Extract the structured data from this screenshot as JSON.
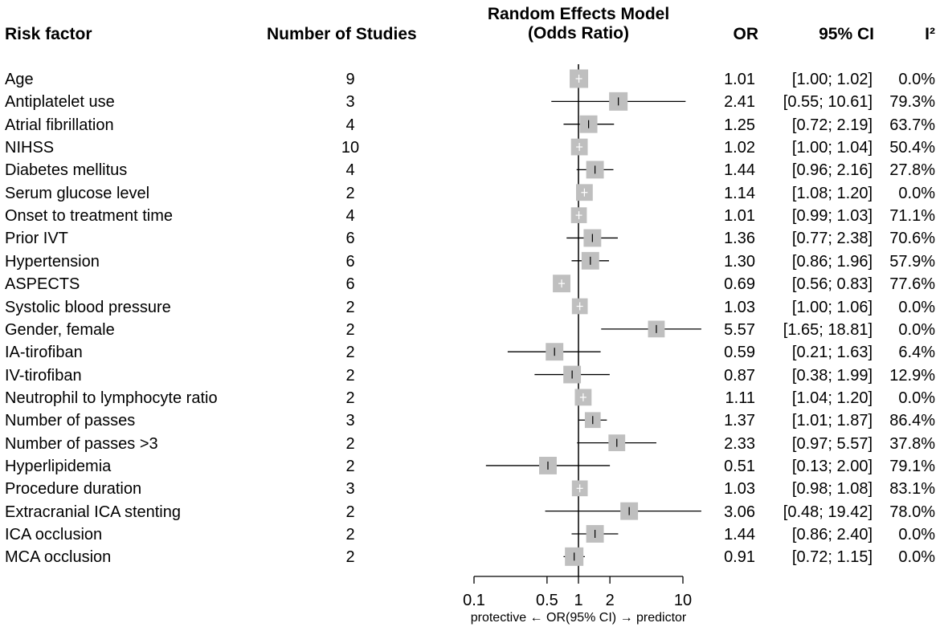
{
  "headers": {
    "risk_factor": "Risk factor",
    "num_studies": "Number of Studies",
    "model_line1": "Random Effects Model",
    "model_line2": "(Odds Ratio)",
    "or": "OR",
    "ci": "95% CI",
    "i2": "I²"
  },
  "axis_caption": "protective ← OR(95% CI) → predictor",
  "colors": {
    "box": "#bfbfbf",
    "line": "#000000"
  },
  "chart_data": {
    "type": "forest",
    "scale": "log",
    "reference_line": 1,
    "xlim": [
      0.1,
      10
    ],
    "ticks": [
      0.1,
      0.5,
      1,
      2,
      10
    ],
    "tick_labels": [
      "0.1",
      "0.5",
      "1",
      "2",
      "10"
    ],
    "rows": [
      {
        "factor": "Age",
        "studies": "9",
        "or": 1.01,
        "lo": 1.0,
        "hi": 1.02,
        "or_text": "1.01",
        "ci_text": "[1.00; 1.02]",
        "i2_text": "0.0%",
        "weight": 1.0
      },
      {
        "factor": "Antiplatelet use",
        "studies": "3",
        "or": 2.41,
        "lo": 0.55,
        "hi": 10.61,
        "or_text": "2.41",
        "ci_text": "[0.55; 10.61]",
        "i2_text": "79.3%",
        "weight": 1.0
      },
      {
        "factor": "Atrial fibrillation",
        "studies": "4",
        "or": 1.25,
        "lo": 0.72,
        "hi": 2.19,
        "or_text": "1.25",
        "ci_text": "[0.72; 2.19]",
        "i2_text": "63.7%",
        "weight": 0.95
      },
      {
        "factor": "NIHSS",
        "studies": "10",
        "or": 1.02,
        "lo": 1.0,
        "hi": 1.04,
        "or_text": "1.02",
        "ci_text": "[1.00; 1.04]",
        "i2_text": "50.4%",
        "weight": 0.9
      },
      {
        "factor": "Diabetes mellitus",
        "studies": "4",
        "or": 1.44,
        "lo": 0.96,
        "hi": 2.16,
        "or_text": "1.44",
        "ci_text": "[0.96; 2.16]",
        "i2_text": "27.8%",
        "weight": 0.95
      },
      {
        "factor": "Serum glucose level",
        "studies": "2",
        "or": 1.14,
        "lo": 1.08,
        "hi": 1.2,
        "or_text": "1.14",
        "ci_text": "[1.08; 1.20]",
        "i2_text": "0.0%",
        "weight": 0.9
      },
      {
        "factor": "Onset to treatment time",
        "studies": "4",
        "or": 1.01,
        "lo": 0.99,
        "hi": 1.03,
        "or_text": "1.01",
        "ci_text": "[0.99; 1.03]",
        "i2_text": "71.1%",
        "weight": 0.85
      },
      {
        "factor": "Prior IVT",
        "studies": "6",
        "or": 1.36,
        "lo": 0.77,
        "hi": 2.38,
        "or_text": "1.36",
        "ci_text": "[0.77; 2.38]",
        "i2_text": "70.6%",
        "weight": 0.95
      },
      {
        "factor": "Hypertension",
        "studies": "6",
        "or": 1.3,
        "lo": 0.86,
        "hi": 1.96,
        "or_text": "1.30",
        "ci_text": "[0.86; 1.96]",
        "i2_text": "57.9%",
        "weight": 0.95
      },
      {
        "factor": "ASPECTS",
        "studies": "6",
        "or": 0.69,
        "lo": 0.56,
        "hi": 0.83,
        "or_text": "0.69",
        "ci_text": "[0.56; 0.83]",
        "i2_text": "77.6%",
        "weight": 0.95
      },
      {
        "factor": "Systolic blood pressure",
        "studies": "2",
        "or": 1.03,
        "lo": 1.0,
        "hi": 1.06,
        "or_text": "1.03",
        "ci_text": "[1.00; 1.06]",
        "i2_text": "0.0%",
        "weight": 0.85
      },
      {
        "factor": "Gender, female",
        "studies": "2",
        "or": 5.57,
        "lo": 1.65,
        "hi": 18.81,
        "or_text": "5.57",
        "ci_text": "[1.65; 18.81]",
        "i2_text": "0.0%",
        "weight": 0.9
      },
      {
        "factor": "IA-tirofiban",
        "studies": "2",
        "or": 0.59,
        "lo": 0.21,
        "hi": 1.63,
        "or_text": "0.59",
        "ci_text": "[0.21; 1.63]",
        "i2_text": "6.4%",
        "weight": 0.95
      },
      {
        "factor": "IV-tirofiban",
        "studies": "2",
        "or": 0.87,
        "lo": 0.38,
        "hi": 1.99,
        "or_text": "0.87",
        "ci_text": "[0.38; 1.99]",
        "i2_text": "12.9%",
        "weight": 0.95
      },
      {
        "factor": "Neutrophil to lymphocyte ratio",
        "studies": "2",
        "or": 1.11,
        "lo": 1.04,
        "hi": 1.2,
        "or_text": "1.11",
        "ci_text": "[1.04; 1.20]",
        "i2_text": "0.0%",
        "weight": 0.9
      },
      {
        "factor": "Number of passes",
        "studies": "3",
        "or": 1.37,
        "lo": 1.01,
        "hi": 1.87,
        "or_text": "1.37",
        "ci_text": "[1.01; 1.87]",
        "i2_text": "86.4%",
        "weight": 0.85
      },
      {
        "factor": "Number of passes >3",
        "studies": "2",
        "or": 2.33,
        "lo": 0.97,
        "hi": 5.57,
        "or_text": "2.33",
        "ci_text": "[0.97; 5.57]",
        "i2_text": "37.8%",
        "weight": 0.9
      },
      {
        "factor": "Hyperlipidemia",
        "studies": "2",
        "or": 0.51,
        "lo": 0.13,
        "hi": 2.0,
        "or_text": "0.51",
        "ci_text": "[0.13; 2.00]",
        "i2_text": "79.1%",
        "weight": 0.95
      },
      {
        "factor": "Procedure duration",
        "studies": "3",
        "or": 1.03,
        "lo": 0.98,
        "hi": 1.08,
        "or_text": "1.03",
        "ci_text": "[0.98; 1.08]",
        "i2_text": "83.1%",
        "weight": 0.85
      },
      {
        "factor": "Extracranial ICA stenting",
        "studies": "2",
        "or": 3.06,
        "lo": 0.48,
        "hi": 19.42,
        "or_text": "3.06",
        "ci_text": "[0.48; 19.42]",
        "i2_text": "78.0%",
        "weight": 0.95
      },
      {
        "factor": "ICA occlusion",
        "studies": "2",
        "or": 1.44,
        "lo": 0.86,
        "hi": 2.4,
        "or_text": "1.44",
        "ci_text": "[0.86; 2.40]",
        "i2_text": "0.0%",
        "weight": 0.95
      },
      {
        "factor": "MCA occlusion",
        "studies": "2",
        "or": 0.91,
        "lo": 0.72,
        "hi": 1.15,
        "or_text": "0.91",
        "ci_text": "[0.72; 1.15]",
        "i2_text": "0.0%",
        "weight": 1.0
      }
    ]
  }
}
